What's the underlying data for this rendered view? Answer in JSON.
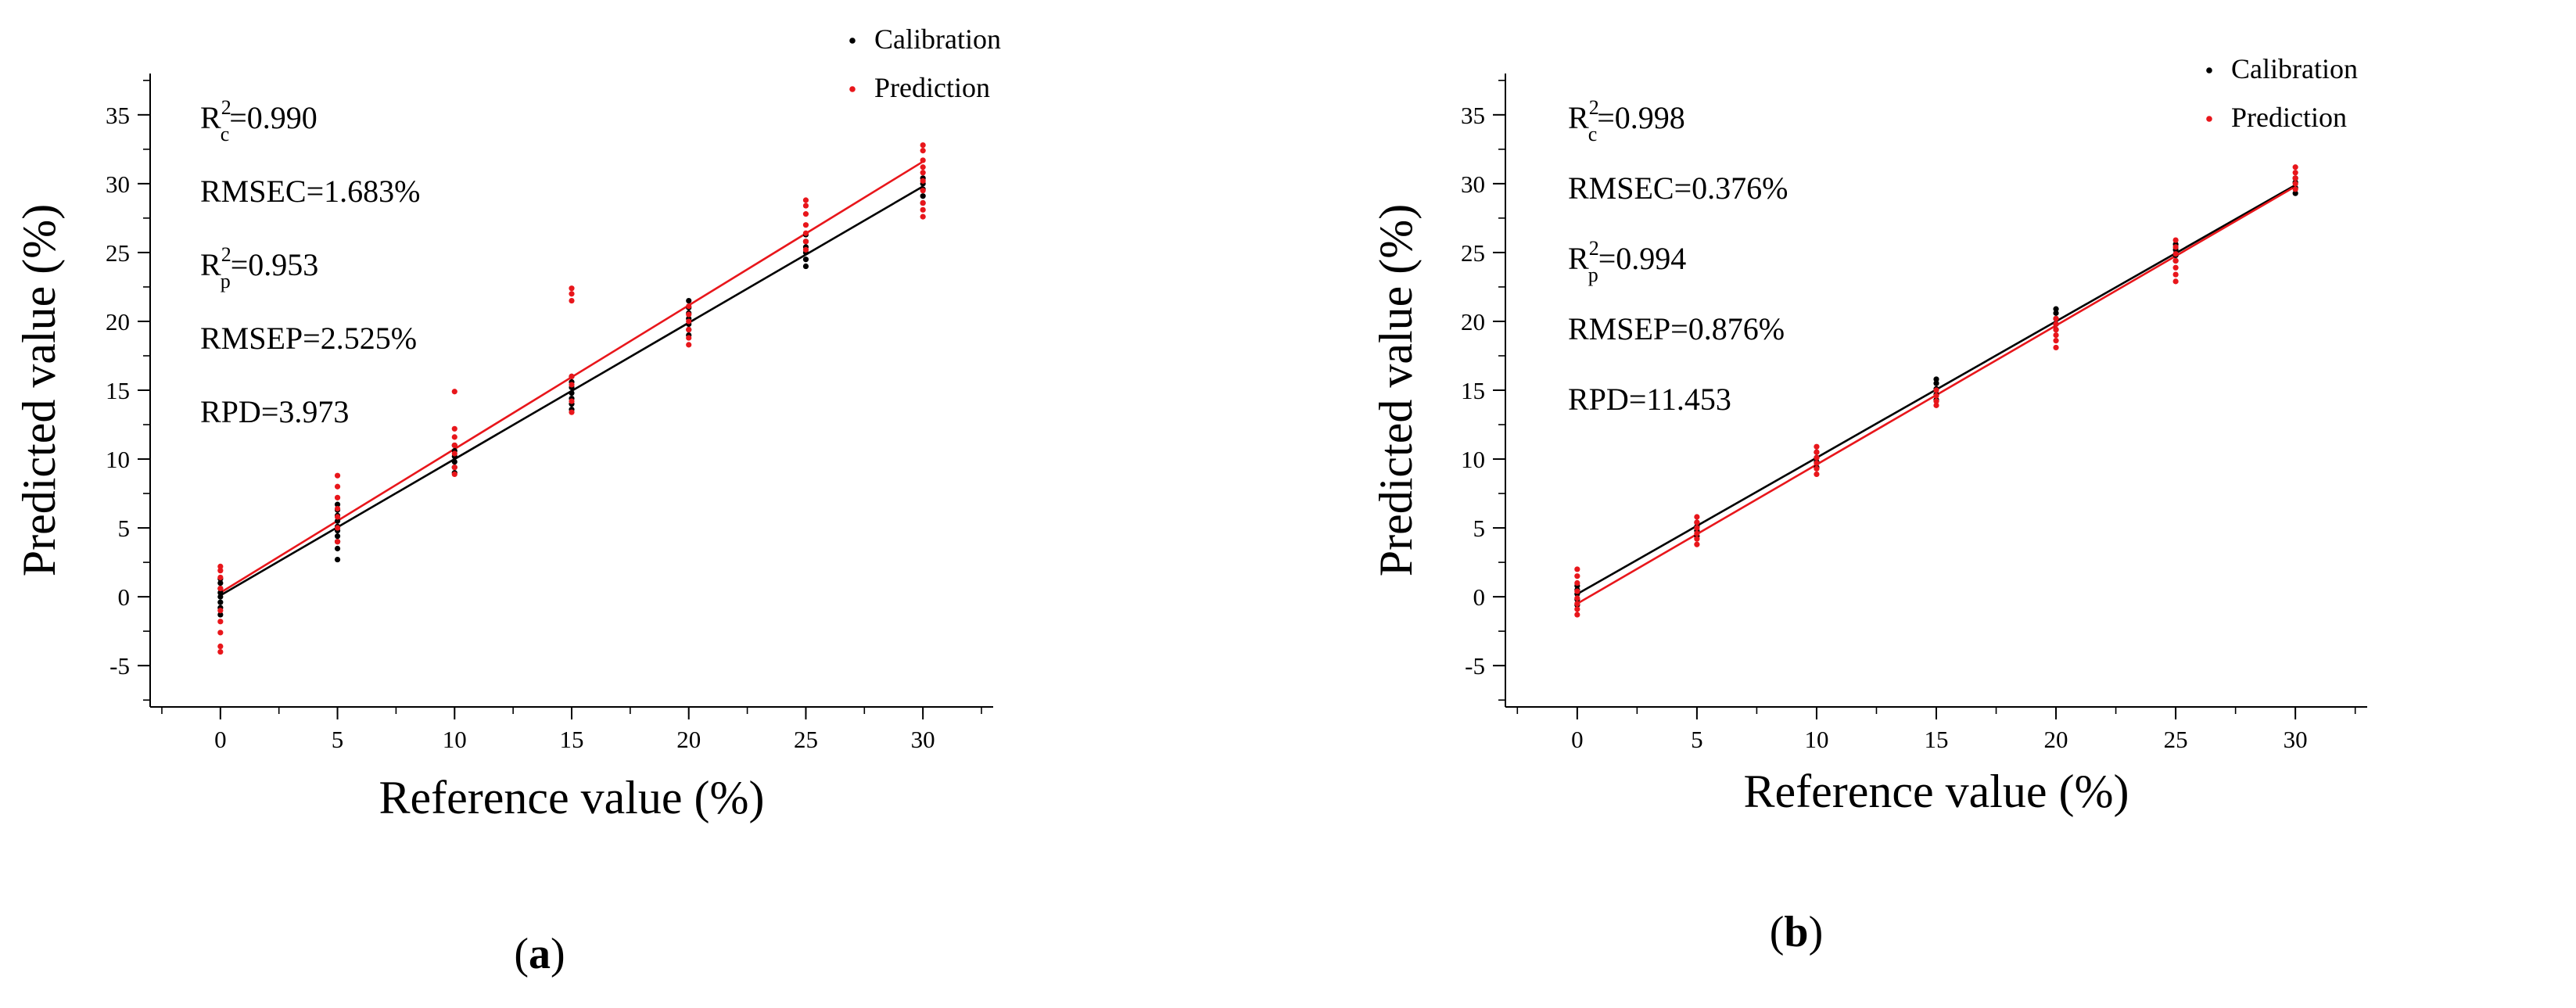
{
  "chart_data": [
    {
      "type": "scatter",
      "panel_label": "a",
      "xlabel": "Reference value (%)",
      "ylabel": "Predicted value (%)",
      "xlim": [
        -3,
        33
      ],
      "ylim": [
        -8,
        38
      ],
      "xticks": [
        0,
        5,
        10,
        15,
        20,
        25,
        30
      ],
      "yticks": [
        -5,
        0,
        5,
        10,
        15,
        20,
        25,
        30,
        35
      ],
      "legend": {
        "position": "top-right",
        "entries": [
          "Calibration",
          "Prediction"
        ]
      },
      "annotations": [
        {
          "main": "R",
          "sup": "2",
          "sub": "c",
          "rest": "=0.990"
        },
        {
          "main": "RMSEC=1.683%"
        },
        {
          "main": "R",
          "sup": "2",
          "sub": "p",
          "rest": "=0.953"
        },
        {
          "main": "RMSEP=2.525%"
        },
        {
          "main": "RPD=3.973"
        }
      ],
      "series": [
        {
          "name": "Calibration",
          "color": "#000000",
          "fit_line": [
            [
              0,
              0.1
            ],
            [
              30,
              29.8
            ]
          ],
          "points": [
            [
              0,
              -1.3
            ],
            [
              0,
              -0.8
            ],
            [
              0,
              -0.4
            ],
            [
              0,
              0
            ],
            [
              0,
              0.3
            ],
            [
              0,
              0.6
            ],
            [
              0,
              1.0
            ],
            [
              0,
              1.3
            ],
            [
              5,
              2.7
            ],
            [
              5,
              3.5
            ],
            [
              5,
              4.0
            ],
            [
              5,
              4.4
            ],
            [
              5,
              4.8
            ],
            [
              5,
              5.1
            ],
            [
              5,
              5.5
            ],
            [
              5,
              5.9
            ],
            [
              5,
              6.3
            ],
            [
              5,
              6.7
            ],
            [
              10,
              9.0
            ],
            [
              10,
              9.4
            ],
            [
              10,
              9.8
            ],
            [
              10,
              10.2
            ],
            [
              10,
              10.6
            ],
            [
              10,
              11.0
            ],
            [
              15,
              13.6
            ],
            [
              15,
              14.0
            ],
            [
              15,
              14.4
            ],
            [
              15,
              14.8
            ],
            [
              15,
              15.2
            ],
            [
              15,
              15.6
            ],
            [
              15,
              16.0
            ],
            [
              20,
              19.0
            ],
            [
              20,
              19.4
            ],
            [
              20,
              19.8
            ],
            [
              20,
              20.2
            ],
            [
              20,
              20.6
            ],
            [
              20,
              21.0
            ],
            [
              20,
              21.5
            ],
            [
              25,
              24.0
            ],
            [
              25,
              24.5
            ],
            [
              25,
              25.0
            ],
            [
              25,
              25.4
            ],
            [
              25,
              25.8
            ],
            [
              25,
              26.3
            ],
            [
              30,
              28.6
            ],
            [
              30,
              29.1
            ],
            [
              30,
              29.6
            ],
            [
              30,
              30.0
            ],
            [
              30,
              30.4
            ]
          ]
        },
        {
          "name": "Prediction",
          "color": "#e8161b",
          "fit_line": [
            [
              0,
              0.3
            ],
            [
              30,
              31.6
            ]
          ],
          "points": [
            [
              0,
              -4.0
            ],
            [
              0,
              -3.6
            ],
            [
              0,
              -2.6
            ],
            [
              0,
              -1.8
            ],
            [
              0,
              -1.0
            ],
            [
              0,
              0.6
            ],
            [
              0,
              1.4
            ],
            [
              0,
              1.9
            ],
            [
              0,
              2.2
            ],
            [
              5,
              4.0
            ],
            [
              5,
              5.0
            ],
            [
              5,
              5.8
            ],
            [
              5,
              6.4
            ],
            [
              5,
              7.2
            ],
            [
              5,
              8.0
            ],
            [
              5,
              8.8
            ],
            [
              10,
              8.9
            ],
            [
              10,
              9.4
            ],
            [
              10,
              10.4
            ],
            [
              10,
              11.0
            ],
            [
              10,
              11.6
            ],
            [
              10,
              12.2
            ],
            [
              10,
              14.9
            ],
            [
              15,
              13.4
            ],
            [
              15,
              14.2
            ],
            [
              15,
              15.4
            ],
            [
              15,
              16.0
            ],
            [
              15,
              21.5
            ],
            [
              15,
              22.0
            ],
            [
              15,
              22.4
            ],
            [
              20,
              18.3
            ],
            [
              20,
              18.8
            ],
            [
              20,
              19.4
            ],
            [
              20,
              20.0
            ],
            [
              20,
              20.5
            ],
            [
              20,
              21.1
            ],
            [
              25,
              25.2
            ],
            [
              25,
              25.8
            ],
            [
              25,
              26.4
            ],
            [
              25,
              27.0
            ],
            [
              25,
              27.8
            ],
            [
              25,
              28.4
            ],
            [
              25,
              28.8
            ],
            [
              30,
              27.6
            ],
            [
              30,
              28.1
            ],
            [
              30,
              28.6
            ],
            [
              30,
              29.5
            ],
            [
              30,
              30.2
            ],
            [
              30,
              30.8
            ],
            [
              30,
              31.2
            ],
            [
              30,
              31.7
            ],
            [
              30,
              32.4
            ],
            [
              30,
              32.8
            ]
          ]
        }
      ]
    },
    {
      "type": "scatter",
      "panel_label": "b",
      "xlabel": "Reference value (%)",
      "ylabel": "Predicted value (%)",
      "xlim": [
        -3,
        33
      ],
      "ylim": [
        -8,
        38
      ],
      "xticks": [
        0,
        5,
        10,
        15,
        20,
        25,
        30
      ],
      "yticks": [
        -5,
        0,
        5,
        10,
        15,
        20,
        25,
        30,
        35
      ],
      "legend": {
        "position": "top-right",
        "entries": [
          "Calibration",
          "Prediction"
        ]
      },
      "annotations": [
        {
          "main": "R",
          "sup": "2",
          "sub": "c",
          "rest": "=0.998"
        },
        {
          "main": "RMSEC=0.376%"
        },
        {
          "main": "R",
          "sup": "2",
          "sub": "p",
          "rest": "=0.994"
        },
        {
          "main": "RMSEP=0.876%"
        },
        {
          "main": "RPD=11.453"
        }
      ],
      "series": [
        {
          "name": "Calibration",
          "color": "#000000",
          "fit_line": [
            [
              0,
              0.2
            ],
            [
              30,
              29.9
            ]
          ],
          "points": [
            [
              0,
              -0.6
            ],
            [
              0,
              -0.2
            ],
            [
              0,
              0.2
            ],
            [
              0,
              0.5
            ],
            [
              0,
              0.8
            ],
            [
              5,
              4.4
            ],
            [
              5,
              4.8
            ],
            [
              5,
              5.1
            ],
            [
              5,
              5.4
            ],
            [
              10,
              9.4
            ],
            [
              10,
              9.8
            ],
            [
              10,
              10.1
            ],
            [
              10,
              10.5
            ],
            [
              15,
              14.3
            ],
            [
              15,
              14.7
            ],
            [
              15,
              15.1
            ],
            [
              15,
              15.5
            ],
            [
              15,
              15.8
            ],
            [
              20,
              19.4
            ],
            [
              20,
              19.8
            ],
            [
              20,
              20.2
            ],
            [
              20,
              20.6
            ],
            [
              20,
              20.9
            ],
            [
              25,
              24.4
            ],
            [
              25,
              24.8
            ],
            [
              25,
              25.2
            ],
            [
              25,
              25.6
            ],
            [
              30,
              29.3
            ],
            [
              30,
              29.7
            ],
            [
              30,
              30.1
            ],
            [
              30,
              30.4
            ]
          ]
        },
        {
          "name": "Prediction",
          "color": "#e8161b",
          "fit_line": [
            [
              0,
              -0.5
            ],
            [
              30,
              29.8
            ]
          ],
          "points": [
            [
              0,
              -1.3
            ],
            [
              0,
              -0.9
            ],
            [
              0,
              -0.5
            ],
            [
              0,
              -0.1
            ],
            [
              0,
              0.4
            ],
            [
              0,
              1.0
            ],
            [
              0,
              1.5
            ],
            [
              0,
              2.0
            ],
            [
              5,
              3.8
            ],
            [
              5,
              4.2
            ],
            [
              5,
              4.6
            ],
            [
              5,
              5.0
            ],
            [
              5,
              5.4
            ],
            [
              5,
              5.8
            ],
            [
              10,
              8.9
            ],
            [
              10,
              9.3
            ],
            [
              10,
              9.7
            ],
            [
              10,
              10.1
            ],
            [
              10,
              10.5
            ],
            [
              10,
              10.9
            ],
            [
              15,
              13.9
            ],
            [
              15,
              14.2
            ],
            [
              15,
              14.6
            ],
            [
              15,
              15.0
            ],
            [
              20,
              18.1
            ],
            [
              20,
              18.6
            ],
            [
              20,
              19.0
            ],
            [
              20,
              19.4
            ],
            [
              20,
              19.8
            ],
            [
              20,
              20.2
            ],
            [
              25,
              22.9
            ],
            [
              25,
              23.4
            ],
            [
              25,
              23.9
            ],
            [
              25,
              24.4
            ],
            [
              25,
              24.9
            ],
            [
              25,
              25.4
            ],
            [
              25,
              25.9
            ],
            [
              30,
              29.6
            ],
            [
              30,
              30.0
            ],
            [
              30,
              30.4
            ],
            [
              30,
              30.8
            ],
            [
              30,
              31.2
            ]
          ]
        }
      ]
    }
  ]
}
